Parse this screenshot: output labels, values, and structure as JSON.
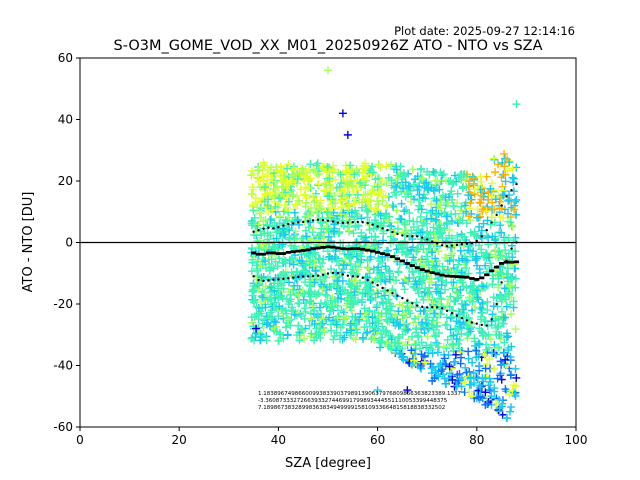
{
  "chart_data": {
    "type": "scatter",
    "title": "S-O3M_GOME_VOD_XX_M01_20250926Z ATO - NTO vs SZA",
    "plot_date": "Plot date: 2025-09-27 12:14:16",
    "xlabel": "SZA [degree]",
    "ylabel": "ATO - NTO [DU]",
    "xlim": [
      0,
      100
    ],
    "ylim": [
      -60,
      60
    ],
    "xticks": [
      "0",
      "20",
      "40",
      "60",
      "80",
      "100"
    ],
    "yticks": [
      "60",
      "40",
      "20",
      "0",
      "-20",
      "-40",
      "-60"
    ],
    "xtick_values": [
      0,
      20,
      40,
      60,
      80,
      100
    ],
    "ytick_values": [
      60,
      40,
      20,
      0,
      -20,
      -40,
      -60
    ],
    "zero_line": 0,
    "scatter_extent": {
      "sza_min": 34.5,
      "sza_max": 88
    },
    "colors": {
      "teal": "#3cf2b4",
      "cyan": "#18c8f0",
      "blue": "#0a6cff",
      "navy": "#0000e0",
      "yellow": "#e2ff2a",
      "lime": "#a8ff5a",
      "orange": "#ffb000"
    },
    "series": [
      {
        "name": "mean",
        "x": [
          35,
          36,
          37,
          38,
          39,
          40,
          41,
          42,
          43,
          44,
          45,
          46,
          47,
          48,
          49,
          50,
          51,
          52,
          53,
          54,
          55,
          56,
          57,
          58,
          59,
          60,
          61,
          62,
          63,
          64,
          65,
          66,
          67,
          68,
          69,
          70,
          71,
          72,
          73,
          74,
          75,
          76,
          77,
          78,
          79,
          80,
          81,
          82,
          83,
          84,
          85,
          86,
          87,
          88
        ],
        "values": [
          -3.4,
          -3.8,
          -3.8,
          -3.4,
          -3.4,
          -3.6,
          -3.6,
          -3.2,
          -3.0,
          -2.8,
          -2.6,
          -2.4,
          -2.0,
          -1.8,
          -1.6,
          -1.4,
          -1.5,
          -1.8,
          -2.0,
          -2.1,
          -2.0,
          -2.0,
          -2.2,
          -2.5,
          -2.8,
          -3.2,
          -3.6,
          -4.0,
          -4.6,
          -5.3,
          -6.0,
          -6.8,
          -7.5,
          -8.2,
          -8.8,
          -9.3,
          -9.8,
          -10.2,
          -10.6,
          -10.9,
          -11.0,
          -11.1,
          -11.2,
          -11.3,
          -11.7,
          -12.0,
          -11.5,
          -10.5,
          -9.2,
          -8.0,
          -6.8,
          -6.4,
          -6.4,
          -6.3
        ]
      },
      {
        "name": "upper",
        "x": [
          35,
          36,
          37,
          38,
          39,
          40,
          41,
          42,
          43,
          44,
          45,
          46,
          47,
          48,
          49,
          50,
          51,
          52,
          53,
          54,
          55,
          56,
          57,
          58,
          59,
          60,
          61,
          62,
          63,
          64,
          65,
          66,
          67,
          68,
          69,
          70,
          71,
          72,
          73,
          74,
          75,
          76,
          77,
          78,
          79,
          80,
          81,
          82,
          83,
          84,
          85,
          86,
          87,
          88
        ],
        "values": [
          3.5,
          4.0,
          4.5,
          4.8,
          4.6,
          5.0,
          5.5,
          6.0,
          6.2,
          6.6,
          6.7,
          6.9,
          7.2,
          7.4,
          7.3,
          7.1,
          6.8,
          6.5,
          6.4,
          6.5,
          6.6,
          6.7,
          6.6,
          6.3,
          5.8,
          5.2,
          4.6,
          4.0,
          3.4,
          2.8,
          2.3,
          2.1,
          2.0,
          2.0,
          1.6,
          1.0,
          0.3,
          -0.3,
          -0.9,
          -1.2,
          -1.0,
          -0.8,
          -0.6,
          -0.4,
          -0.2,
          0.5,
          2.0,
          4.0,
          6.5,
          9.0,
          12.0,
          15.0,
          17.0,
          19.0
        ]
      },
      {
        "name": "lower",
        "x": [
          35,
          36,
          37,
          38,
          39,
          40,
          41,
          42,
          43,
          44,
          45,
          46,
          47,
          48,
          49,
          50,
          51,
          52,
          53,
          54,
          55,
          56,
          57,
          58,
          59,
          60,
          61,
          62,
          63,
          64,
          65,
          66,
          67,
          68,
          69,
          70,
          71,
          72,
          73,
          74,
          75,
          76,
          77,
          78,
          79,
          80,
          81,
          82,
          83,
          84,
          85,
          86,
          87,
          88
        ],
        "values": [
          -11.0,
          -12.2,
          -12.5,
          -12.3,
          -12.1,
          -12.0,
          -11.8,
          -11.6,
          -11.4,
          -11.2,
          -11.1,
          -11.0,
          -10.9,
          -10.8,
          -10.5,
          -10.1,
          -9.9,
          -10.0,
          -10.4,
          -10.8,
          -11.0,
          -11.1,
          -11.5,
          -12.2,
          -13.0,
          -13.9,
          -14.8,
          -15.6,
          -16.5,
          -17.3,
          -18.1,
          -18.9,
          -19.8,
          -20.5,
          -20.9,
          -21.1,
          -21.0,
          -21.1,
          -21.4,
          -22.2,
          -23.0,
          -23.8,
          -24.6,
          -25.3,
          -26.0,
          -26.4,
          -26.8,
          -27.0,
          -25.0,
          -20.0,
          -13.0,
          -6.0,
          -2.0,
          0.0
        ]
      }
    ],
    "bin_labels": {
      "row1": "1.1838967498660099383390379891390637976809866363823389.1337",
      "row2": "-3.3608733327266393327446991799893444551110053399448375",
      "row3": "7.1898673832899836383494999915810933664815818838332502"
    }
  }
}
